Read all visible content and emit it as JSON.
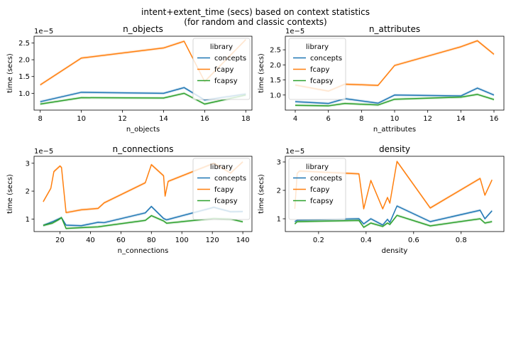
{
  "figure": {
    "title_line1": "intent+extent_time (secs) based on context statistics",
    "title_line2": "(for random and classic contexts)"
  },
  "colors": {
    "concepts": "#1f77b4",
    "fcapy": "#ff7f0e",
    "fcapsy": "#2ca02c"
  },
  "chart_data": [
    {
      "type": "line",
      "title": "n_objects",
      "xlabel": "n_objects",
      "ylabel": "time (secs)",
      "offset_text": "1e−5",
      "xlim": [
        7.7,
        18.3
      ],
      "ylim": [
        0.5,
        2.7
      ],
      "xticks": [
        8,
        10,
        12,
        14,
        16,
        18
      ],
      "xtick_labels": [
        "8",
        "10",
        "12",
        "14",
        "16",
        "18"
      ],
      "yticks": [
        1.0,
        1.5,
        2.0,
        2.5
      ],
      "ytick_labels": [
        "1.0",
        "1.5",
        "2.0",
        "2.5"
      ],
      "legend": {
        "title": "library",
        "placement": "upper right"
      },
      "series": [
        {
          "name": "concepts",
          "x": [
            8,
            10,
            14,
            15,
            16,
            18
          ],
          "y": [
            0.75,
            1.03,
            1.0,
            1.17,
            0.8,
            0.98
          ]
        },
        {
          "name": "fcapy",
          "x": [
            8,
            10,
            14,
            15,
            16,
            18
          ],
          "y": [
            1.25,
            2.05,
            2.35,
            2.55,
            1.35,
            2.6
          ]
        },
        {
          "name": "fcapsy",
          "x": [
            8,
            10,
            14,
            15,
            16,
            18
          ],
          "y": [
            0.68,
            0.87,
            0.86,
            1.0,
            0.68,
            0.95
          ]
        }
      ]
    },
    {
      "type": "line",
      "title": "n_attributes",
      "xlabel": "n_attributes",
      "ylabel": "time (secs)",
      "offset_text": "1e−5",
      "xlim": [
        3.4,
        16.6
      ],
      "ylim": [
        0.5,
        2.95
      ],
      "xticks": [
        4,
        6,
        8,
        10,
        12,
        14,
        16
      ],
      "xtick_labels": [
        "4",
        "6",
        "8",
        "10",
        "12",
        "14",
        "16"
      ],
      "yticks": [
        1.0,
        1.5,
        2.0,
        2.5
      ],
      "ytick_labels": [
        "1.0",
        "1.5",
        "2.0",
        "2.5"
      ],
      "legend": {
        "title": "library",
        "placement": "upper left"
      },
      "series": [
        {
          "name": "concepts",
          "x": [
            4,
            6,
            7,
            9,
            10,
            14,
            15,
            16
          ],
          "y": [
            0.78,
            0.72,
            0.88,
            0.73,
            1.0,
            0.97,
            1.23,
            1.0
          ]
        },
        {
          "name": "fcapy",
          "x": [
            4,
            6,
            7,
            9,
            10,
            14,
            15,
            16
          ],
          "y": [
            1.33,
            1.13,
            1.36,
            1.32,
            1.98,
            2.6,
            2.8,
            2.35
          ]
        },
        {
          "name": "fcapsy",
          "x": [
            4,
            6,
            7,
            9,
            10,
            14,
            15,
            16
          ],
          "y": [
            0.66,
            0.64,
            0.72,
            0.67,
            0.86,
            0.93,
            1.02,
            0.85
          ]
        }
      ]
    },
    {
      "type": "line",
      "title": "n_connections",
      "xlabel": "n_connections",
      "ylabel": "time (secs)",
      "offset_text": "1e−5",
      "xlim": [
        3,
        146
      ],
      "ylim": [
        0.55,
        3.25
      ],
      "xticks": [
        20,
        40,
        60,
        80,
        100,
        120,
        140
      ],
      "xtick_labels": [
        "20",
        "40",
        "60",
        "80",
        "100",
        "120",
        "140"
      ],
      "yticks": [
        1,
        2,
        3
      ],
      "ytick_labels": [
        "1",
        "2",
        "3"
      ],
      "legend": {
        "title": "library",
        "placement": "upper right"
      },
      "series": [
        {
          "name": "concepts",
          "x": [
            9,
            15,
            19,
            21,
            24,
            34,
            45,
            49,
            76,
            80,
            88,
            90,
            121,
            132,
            140
          ],
          "y": [
            0.77,
            0.9,
            1.0,
            1.05,
            0.78,
            0.76,
            0.88,
            0.87,
            1.22,
            1.45,
            1.02,
            0.97,
            1.42,
            1.26,
            1.27
          ]
        },
        {
          "name": "fcapy",
          "x": [
            9,
            14,
            16,
            20,
            21,
            24,
            34,
            45,
            49,
            76,
            80,
            88,
            89,
            91,
            121,
            132,
            140
          ],
          "y": [
            1.62,
            2.1,
            2.7,
            2.9,
            2.85,
            1.23,
            1.33,
            1.38,
            1.58,
            2.3,
            2.95,
            2.55,
            1.82,
            2.35,
            3.0,
            2.65,
            3.05
          ]
        },
        {
          "name": "fcapsy",
          "x": [
            9,
            15,
            19,
            21,
            24,
            34,
            45,
            49,
            76,
            80,
            88,
            90,
            121,
            132,
            140
          ],
          "y": [
            0.77,
            0.85,
            0.97,
            1.05,
            0.66,
            0.69,
            0.72,
            0.75,
            0.95,
            1.12,
            0.93,
            0.85,
            1.02,
            1.0,
            0.9
          ]
        }
      ]
    },
    {
      "type": "line",
      "title": "density",
      "xlabel": "density",
      "ylabel": "time (secs)",
      "offset_text": "1e−5",
      "xlim": [
        0.06,
        0.98
      ],
      "ylim": [
        0.55,
        3.2
      ],
      "xticks": [
        0.2,
        0.4,
        0.6,
        0.8
      ],
      "xtick_labels": [
        "0.2",
        "0.4",
        "0.6",
        "0.8"
      ],
      "yticks": [
        1,
        2,
        3
      ],
      "ytick_labels": [
        "1",
        "2",
        "3"
      ],
      "legend": {
        "title": "library",
        "placement": "upper left"
      },
      "series": [
        {
          "name": "concepts",
          "x": [
            0.1,
            0.11,
            0.37,
            0.39,
            0.42,
            0.47,
            0.49,
            0.5,
            0.53,
            0.67,
            0.88,
            0.9,
            0.93
          ],
          "y": [
            0.9,
            0.95,
            1.0,
            0.82,
            1.0,
            0.78,
            0.98,
            0.87,
            1.45,
            0.9,
            1.3,
            1.0,
            1.28
          ]
        },
        {
          "name": "fcapy",
          "x": [
            0.1,
            0.11,
            0.12,
            0.37,
            0.39,
            0.42,
            0.47,
            0.49,
            0.5,
            0.53,
            0.67,
            0.88,
            0.9,
            0.93
          ],
          "y": [
            1.35,
            2.6,
            2.68,
            2.58,
            1.35,
            2.35,
            1.35,
            1.75,
            1.55,
            3.02,
            1.38,
            2.42,
            1.83,
            2.37
          ]
        },
        {
          "name": "fcapsy",
          "x": [
            0.1,
            0.11,
            0.37,
            0.39,
            0.42,
            0.47,
            0.49,
            0.5,
            0.53,
            0.67,
            0.88,
            0.9,
            0.93
          ],
          "y": [
            0.82,
            0.9,
            0.94,
            0.7,
            0.85,
            0.73,
            0.85,
            0.8,
            1.12,
            0.75,
            1.0,
            0.85,
            0.9
          ]
        }
      ]
    }
  ]
}
